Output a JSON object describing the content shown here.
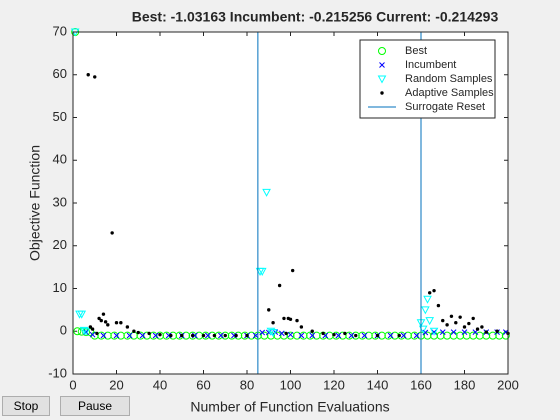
{
  "chart_data": {
    "type": "scatter",
    "title": "Best: -1.03163 Incumbent: -0.215256 Current: -0.214293",
    "xlabel": "Number of Function Evaluations",
    "ylabel": "Objective Function",
    "xlim": [
      0,
      200
    ],
    "xticks": [
      0,
      20,
      40,
      60,
      80,
      100,
      120,
      140,
      160,
      180,
      200
    ],
    "ylim": [
      -10,
      70
    ],
    "yticks": [
      -10,
      0,
      10,
      20,
      30,
      40,
      50,
      60,
      70
    ],
    "legend": "upper right",
    "series": [
      {
        "name": "Best",
        "color": "#00ff00",
        "marker": "circle",
        "x": [
          1,
          2,
          4,
          6,
          8,
          10,
          13,
          16,
          19,
          22,
          25,
          28,
          31,
          34,
          37,
          40,
          43,
          46,
          49,
          52,
          55,
          58,
          61,
          64,
          67,
          70,
          73,
          76,
          79,
          82,
          85,
          88,
          91,
          94,
          97,
          100,
          103,
          106,
          109,
          112,
          115,
          118,
          121,
          124,
          127,
          130,
          133,
          136,
          139,
          142,
          145,
          148,
          151,
          154,
          157,
          160,
          163,
          166,
          169,
          172,
          175,
          178,
          181,
          184,
          187,
          190,
          193,
          196,
          199
        ],
        "values": [
          70,
          0,
          -0.1,
          -0.2,
          -0.2,
          -1.03,
          -1.03,
          -1.03,
          -1.03,
          -1.03,
          -1.03,
          -1.03,
          -1.03,
          -1.03,
          -1.03,
          -1.03,
          -1.03,
          -1.03,
          -1.03,
          -1.03,
          -1.03,
          -1.03,
          -1.03,
          -1.03,
          -1.03,
          -1.03,
          -1.03,
          -1.03,
          -1.03,
          -1.03,
          -1.03,
          -1.03,
          -1.03,
          -1.03,
          -1.03,
          -1.03,
          -1.03,
          -1.03,
          -1.03,
          -1.03,
          -1.03,
          -1.03,
          -1.03,
          -1.03,
          -1.03,
          -1.03,
          -1.03,
          -1.03,
          -1.03,
          -1.03,
          -1.03,
          -1.03,
          -1.03,
          -1.03,
          -1.03,
          -1.03,
          -1.03,
          -1.03,
          -1.03,
          -1.03,
          -1.03,
          -1.03,
          -1.03,
          -1.03,
          -1.03,
          -1.03,
          -1.03,
          -1.03,
          -1.03
        ]
      },
      {
        "name": "Incumbent",
        "color": "#0000ff",
        "marker": "x",
        "x": [
          6,
          9,
          14,
          20,
          26,
          32,
          38,
          44,
          50,
          56,
          62,
          68,
          74,
          80,
          84,
          87,
          90,
          93,
          96,
          100,
          105,
          110,
          116,
          122,
          128,
          134,
          140,
          146,
          152,
          158,
          162,
          166,
          170,
          175,
          180,
          185,
          190,
          195,
          199
        ],
        "values": [
          -0.2,
          -0.8,
          -1,
          -1,
          -1,
          -1,
          -1,
          -1,
          -1,
          -1,
          -1,
          -1,
          -1,
          -1,
          -1,
          -0.3,
          -0.3,
          -0.2,
          -0.5,
          -0.8,
          -1,
          -1,
          -1,
          -1,
          -1,
          -1,
          -1,
          -1,
          -1,
          -1,
          -0.3,
          -0.2,
          -0.2,
          -0.2,
          -0.2,
          -0.2,
          -0.2,
          -0.2,
          -0.2
        ]
      },
      {
        "name": "Random Samples",
        "color": "#00ffff",
        "marker": "triangle",
        "x": [
          1,
          3,
          4,
          5,
          6,
          86,
          87,
          89,
          91,
          92,
          160,
          161,
          162,
          163,
          164,
          166
        ],
        "values": [
          70,
          4,
          4,
          0.2,
          0,
          14,
          14,
          32.5,
          0,
          -0.3,
          2,
          0.5,
          5,
          7.5,
          2.5,
          0
        ]
      },
      {
        "name": "Adaptive Samples",
        "color": "#000000",
        "marker": "dot",
        "x": [
          7,
          8,
          9,
          10,
          11,
          12,
          13,
          14,
          15,
          16,
          18,
          20,
          22,
          25,
          28,
          30,
          35,
          40,
          45,
          50,
          55,
          60,
          65,
          70,
          75,
          80,
          90,
          92,
          95,
          97,
          98,
          99,
          100,
          101,
          103,
          105,
          110,
          115,
          120,
          125,
          130,
          140,
          150,
          164,
          166,
          168,
          170,
          172,
          174,
          176,
          178,
          180,
          182,
          184,
          186,
          188,
          190,
          195,
          200
        ],
        "values": [
          60,
          1,
          0.5,
          59.5,
          -0.5,
          3,
          2.5,
          4,
          2.2,
          1.5,
          23,
          2,
          2,
          1,
          0,
          -0.3,
          -0.5,
          -0.8,
          -1,
          -1,
          -1,
          -1,
          -1,
          -1,
          -1,
          -1,
          5,
          2,
          10.7,
          3,
          -0.5,
          3,
          2.8,
          14.2,
          2.5,
          1,
          0,
          -0.5,
          -0.8,
          -0.5,
          -1,
          -1,
          -1,
          9,
          9.5,
          6,
          2.5,
          1.5,
          3.5,
          2,
          3.3,
          1,
          1.8,
          3,
          0.5,
          1,
          -0.2,
          0,
          -0.5
        ]
      },
      {
        "name": "Surrogate Reset",
        "color": "#0072bd",
        "marker": "vline",
        "x": [
          85,
          160
        ]
      }
    ]
  },
  "controls": [
    "Stop",
    "Pause"
  ]
}
